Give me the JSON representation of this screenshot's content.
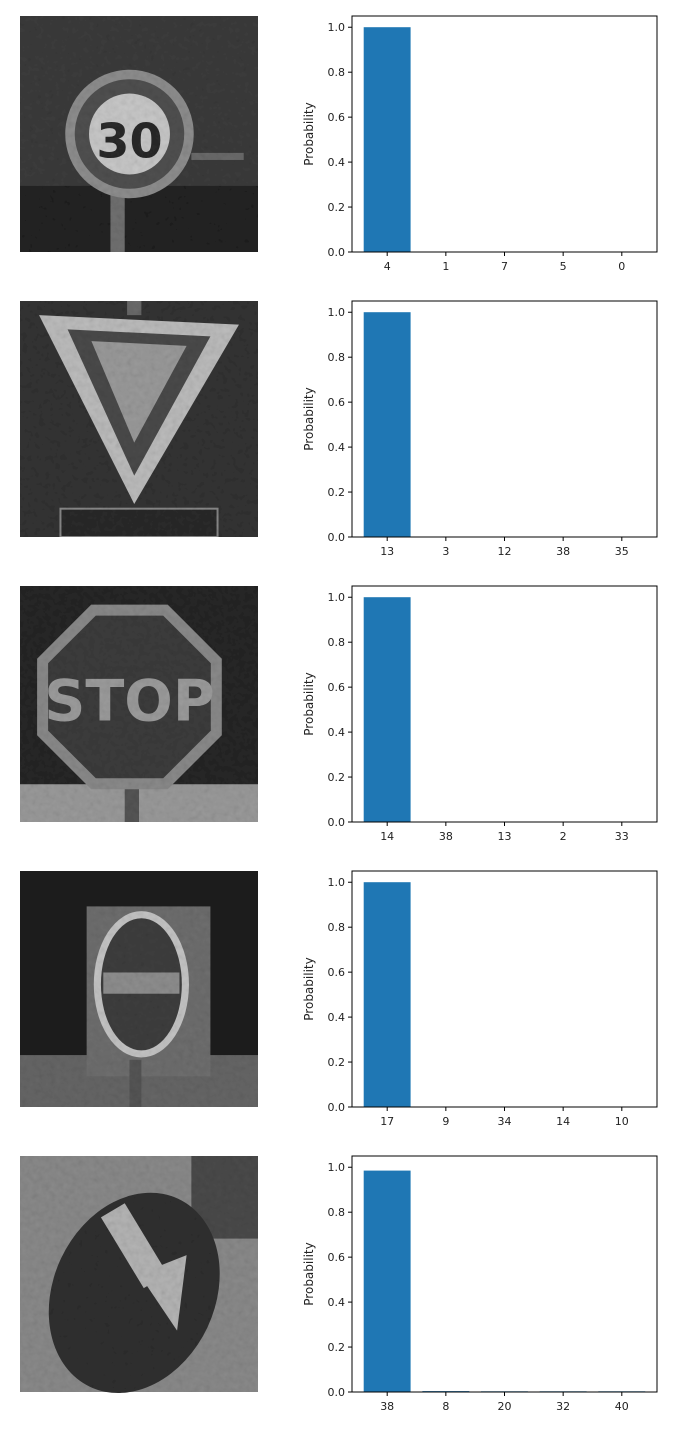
{
  "figure": {
    "bar_color": "#1f77b4",
    "axis_color": "#000000"
  },
  "chart_data": [
    {
      "type": "bar",
      "image_icon": "speed-limit-30-sign",
      "image_text": "30",
      "categories": [
        "4",
        "1",
        "7",
        "5",
        "0"
      ],
      "values": [
        1.0,
        0.0,
        0.0,
        0.0,
        0.0
      ],
      "ylabel": "Probability",
      "ylim": [
        0,
        1.05
      ],
      "yticks": [
        "0.0",
        "0.2",
        "0.4",
        "0.6",
        "0.8",
        "1.0"
      ],
      "grid": false
    },
    {
      "type": "bar",
      "image_icon": "yield-sign",
      "categories": [
        "13",
        "3",
        "12",
        "38",
        "35"
      ],
      "values": [
        1.0,
        0.0,
        0.0,
        0.0,
        0.0
      ],
      "ylabel": "Probability",
      "ylim": [
        0,
        1.05
      ],
      "yticks": [
        "0.0",
        "0.2",
        "0.4",
        "0.6",
        "0.8",
        "1.0"
      ],
      "grid": false
    },
    {
      "type": "bar",
      "image_icon": "stop-sign",
      "image_text": "STOP",
      "categories": [
        "14",
        "38",
        "13",
        "2",
        "33"
      ],
      "values": [
        1.0,
        0.0,
        0.0,
        0.0,
        0.0
      ],
      "ylabel": "Probability",
      "ylim": [
        0,
        1.05
      ],
      "yticks": [
        "0.0",
        "0.2",
        "0.4",
        "0.6",
        "0.8",
        "1.0"
      ],
      "grid": false
    },
    {
      "type": "bar",
      "image_icon": "no-entry-sign",
      "categories": [
        "17",
        "9",
        "34",
        "14",
        "10"
      ],
      "values": [
        1.0,
        0.0,
        0.0,
        0.0,
        0.0
      ],
      "ylabel": "Probability",
      "ylim": [
        0,
        1.05
      ],
      "yticks": [
        "0.0",
        "0.2",
        "0.4",
        "0.6",
        "0.8",
        "1.0"
      ],
      "grid": false
    },
    {
      "type": "bar",
      "image_icon": "keep-right-sign",
      "categories": [
        "38",
        "8",
        "20",
        "32",
        "40"
      ],
      "values": [
        0.985,
        0.004,
        0.003,
        0.003,
        0.003
      ],
      "ylabel": "Probability",
      "ylim": [
        0,
        1.05
      ],
      "yticks": [
        "0.0",
        "0.2",
        "0.4",
        "0.6",
        "0.8",
        "1.0"
      ],
      "grid": false
    }
  ]
}
